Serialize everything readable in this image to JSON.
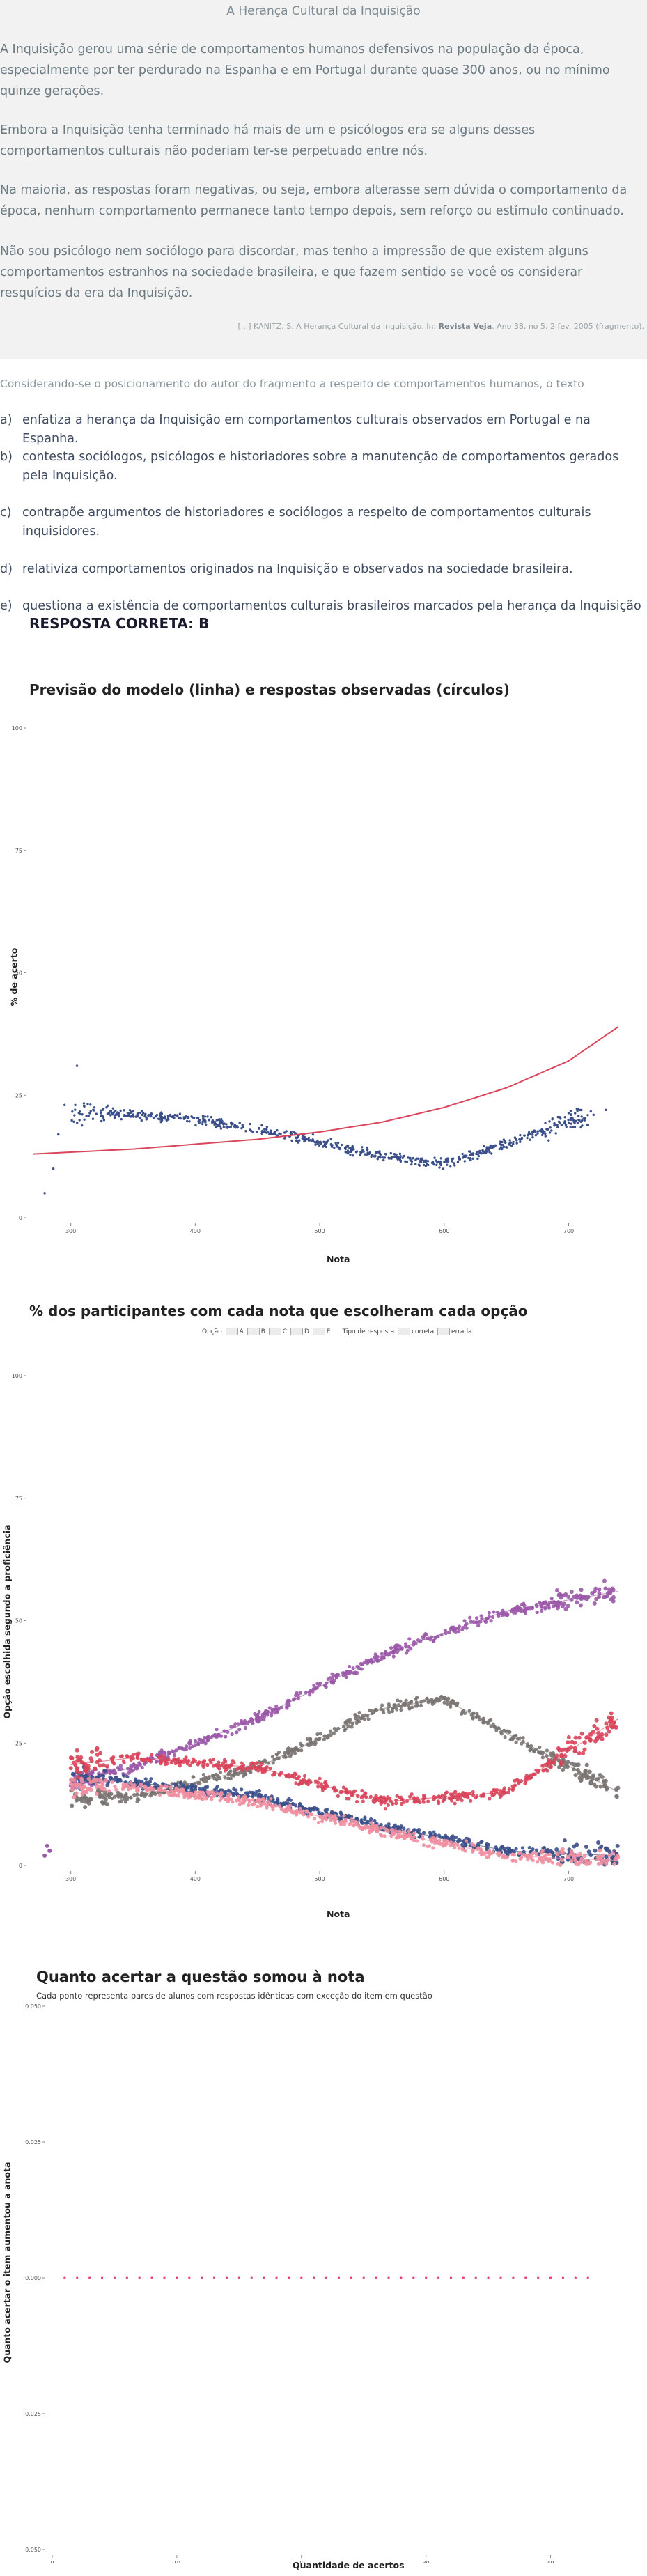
{
  "text": {
    "title": "A Herança Cultural da Inquisição",
    "paragraphs": [
      "A Inquisição gerou uma série de comportamentos humanos defensivos na população da época, especialmente por ter perdurado na Espanha e em Portugal durante quase 300 anos, ou no mínimo quinze gerações.",
      "Embora a Inquisição tenha terminado há mais de um e psicólogos era se alguns desses comportamentos culturais não poderiam ter-se perpetuado entre nós.",
      "Na maioria, as respostas foram negativas, ou seja, embora alterasse sem dúvida o comportamento da época, nenhum comportamento permanece tanto tempo depois, sem reforço ou estímulo continuado.",
      "Não sou psicólogo nem sociólogo para discordar, mas tenho a impressão de que existem alguns comportamentos estranhos na sociedade brasileira, e que fazem sentido se você os considerar resquícios da era da Inquisição."
    ],
    "citation_prefix": "[...] KANITZ, S. A Herança Cultural da Inquisição. In: ",
    "citation_journal": "Revista Veja",
    "citation_suffix": ". Ano 38, no 5, 2 fev. 2005 (fragmento)."
  },
  "question": "Considerando-se o posicionamento do autor do fragmento a respeito de comportamentos humanos, o texto",
  "options": [
    {
      "letter": "a)",
      "text": "enfatiza a herança da Inquisição em comportamentos culturais observados em Portugal e na Espanha."
    },
    {
      "letter": "b)",
      "text": "contesta sociólogos, psicólogos e historiadores sobre a manutenção de comportamentos gerados pela Inquisição."
    },
    {
      "letter": "c)",
      "text": "contrapõe argumentos de historiadores e sociólogos a respeito de comportamentos culturais inquisidores."
    },
    {
      "letter": "d)",
      "text": "relativiza comportamentos originados na Inquisição e observados na sociedade brasileira."
    },
    {
      "letter": "e)",
      "text": "questiona a existência de comportamentos culturais brasileiros marcados pela herança da Inquisição"
    }
  ],
  "answer": "RESPOSTA CORRETA: B",
  "colors": {
    "panel_bg": "#f1f2f1",
    "dots_blue": "#3b4f8a",
    "line_red": "#d9455b",
    "opt_a": "#f08fa0",
    "opt_b": "#d9455b",
    "opt_c": "#3b4f8a",
    "opt_d": "#9b59a8",
    "opt_e": "#7a7472",
    "pink_points": "#e8467c"
  },
  "chart_data": [
    {
      "type": "scatter",
      "title": "Previsão do modelo (linha) e respostas observadas (círculos)",
      "xlabel": "Nota",
      "ylabel": "% de acerto",
      "xlim": [
        270,
        740
      ],
      "ylim": [
        0,
        100
      ],
      "xticks": [
        "300",
        "400",
        "500",
        "600",
        "700"
      ],
      "yticks": [
        "0",
        "25",
        "50",
        "75",
        "100"
      ],
      "model_line": {
        "x": [
          270,
          350,
          450,
          500,
          550,
          600,
          650,
          700,
          740
        ],
        "y": [
          13,
          14,
          16,
          17.5,
          19.5,
          22.5,
          26.5,
          32,
          39
        ]
      },
      "observed_trend": {
        "x": [
          300,
          320,
          350,
          400,
          450,
          500,
          550,
          600,
          650,
          700
        ],
        "y": [
          21,
          21.5,
          21,
          20,
          18,
          15.5,
          12.5,
          11,
          15,
          20
        ]
      }
    },
    {
      "type": "scatter",
      "title": "% dos participantes com cada nota que escolheram cada opção",
      "xlabel": "Nota",
      "ylabel": "Opção escolhida segundo a proficiência",
      "xlim": [
        270,
        740
      ],
      "ylim": [
        0,
        100
      ],
      "xticks": [
        "300",
        "400",
        "500",
        "600",
        "700"
      ],
      "yticks": [
        "0",
        "25",
        "50",
        "75",
        "100"
      ],
      "legend": {
        "option_label": "Opção",
        "options": [
          "A",
          "B",
          "C",
          "D",
          "E"
        ],
        "type_label": "Tipo de resposta",
        "types": [
          "correta",
          "errada"
        ]
      },
      "series": [
        {
          "name": "A",
          "x": [
            280,
            350,
            450,
            550,
            650,
            740
          ],
          "y": [
            16,
            16,
            13,
            7,
            2,
            1
          ]
        },
        {
          "name": "B",
          "x": [
            280,
            350,
            450,
            550,
            650,
            740
          ],
          "y": [
            20,
            22,
            20,
            13,
            15,
            30
          ]
        },
        {
          "name": "C",
          "x": [
            280,
            350,
            450,
            550,
            650,
            740
          ],
          "y": [
            18,
            17,
            14,
            8,
            3,
            2
          ]
        },
        {
          "name": "D",
          "x": [
            280,
            350,
            450,
            550,
            650,
            740
          ],
          "y": [
            16,
            20,
            30,
            43,
            52,
            56
          ]
        },
        {
          "name": "E",
          "x": [
            280,
            350,
            450,
            550,
            600,
            650,
            740
          ],
          "y": [
            14,
            14,
            20,
            32,
            34,
            27,
            15
          ]
        }
      ]
    },
    {
      "type": "scatter",
      "title": "Quanto acertar a questão somou à nota",
      "subtitle": "Cada ponto representa pares de alunos com respostas idênticas com exceção do item em questão",
      "xlabel": "Quantidade de acertos",
      "ylabel": "Quanto acertar o item aumentou a anota",
      "xlim": [
        0,
        45
      ],
      "ylim": [
        -0.05,
        0.05
      ],
      "xticks": [
        "0",
        "10",
        "20",
        "30",
        "40"
      ],
      "yticks": [
        "0.050",
        "0.025",
        "0.000",
        "-0.025",
        "-0.050"
      ],
      "x": [
        1,
        2,
        3,
        4,
        5,
        6,
        7,
        8,
        9,
        10,
        11,
        12,
        13,
        14,
        15,
        16,
        17,
        18,
        19,
        20,
        21,
        22,
        23,
        24,
        25,
        26,
        27,
        28,
        29,
        30,
        31,
        32,
        33,
        34,
        35,
        36,
        37,
        38,
        39,
        40,
        41,
        42,
        43
      ],
      "y": [
        0,
        0,
        0,
        0,
        0,
        0,
        0,
        0,
        0,
        0,
        0,
        0,
        0,
        0,
        0,
        0,
        0,
        0,
        0,
        0,
        0,
        0,
        0,
        0,
        0,
        0,
        0,
        0,
        0,
        0,
        0,
        0,
        0,
        0,
        0,
        0,
        0,
        0,
        0,
        0,
        0,
        0,
        0
      ]
    }
  ]
}
